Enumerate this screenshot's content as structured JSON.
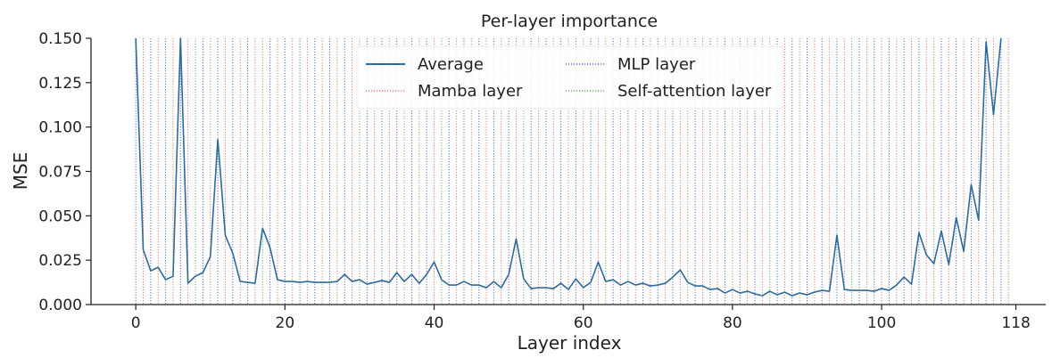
{
  "chart_data": {
    "type": "line",
    "title": "Per-layer importance",
    "xlabel": "Layer index",
    "ylabel": "MSE",
    "xlim": [
      -6,
      122
    ],
    "ylim": [
      0,
      0.15
    ],
    "x_ticks": [
      0,
      20,
      40,
      60,
      80,
      100,
      118
    ],
    "x_tick_labels": [
      "0",
      "20",
      "40",
      "60",
      "80",
      "100",
      "118"
    ],
    "y_ticks": [
      0,
      0.025,
      0.05,
      0.075,
      0.1,
      0.125,
      0.15
    ],
    "y_tick_labels": [
      "0.000",
      "0.025",
      "0.050",
      "0.075",
      "0.100",
      "0.125",
      "0.150"
    ],
    "grid": false,
    "legend_position": "top-center",
    "legend": [
      {
        "label": "Average",
        "style": "solid",
        "color": "#2e6b9a"
      },
      {
        "label": "MLP layer",
        "style": "dotted",
        "color": "#4a4ac8"
      },
      {
        "label": "Mamba layer",
        "style": "dotted",
        "color": "#e06060"
      },
      {
        "label": "Self-attention layer",
        "style": "dotted",
        "color": "#4aa04a"
      }
    ],
    "series": [
      {
        "name": "Average",
        "color": "#2e6b9a",
        "x": [
          0,
          1,
          2,
          3,
          4,
          5,
          6,
          7,
          8,
          9,
          10,
          11,
          12,
          13,
          14,
          15,
          16,
          17,
          18,
          19,
          20,
          21,
          22,
          23,
          24,
          25,
          26,
          27,
          28,
          29,
          30,
          31,
          32,
          33,
          34,
          35,
          36,
          37,
          38,
          39,
          40,
          41,
          42,
          43,
          44,
          45,
          46,
          47,
          48,
          49,
          50,
          51,
          52,
          53,
          54,
          55,
          56,
          57,
          58,
          59,
          60,
          61,
          62,
          63,
          64,
          65,
          66,
          67,
          68,
          69,
          70,
          71,
          72,
          73,
          74,
          75,
          76,
          77,
          78,
          79,
          80,
          81,
          82,
          83,
          84,
          85,
          86,
          87,
          88,
          89,
          90,
          91,
          92,
          93,
          94,
          95,
          96,
          97,
          98,
          99,
          100,
          101,
          102,
          103,
          104,
          105,
          106,
          107,
          108,
          109,
          110,
          111,
          112,
          113,
          114,
          115,
          116
        ],
        "values": [
          0.15,
          0.031,
          0.019,
          0.021,
          0.014,
          0.016,
          0.15,
          0.012,
          0.016,
          0.018,
          0.027,
          0.093,
          0.039,
          0.029,
          0.013,
          0.0125,
          0.012,
          0.043,
          0.032,
          0.014,
          0.013,
          0.013,
          0.0125,
          0.013,
          0.0125,
          0.0125,
          0.0125,
          0.013,
          0.017,
          0.013,
          0.014,
          0.0115,
          0.0125,
          0.0135,
          0.0125,
          0.018,
          0.013,
          0.017,
          0.012,
          0.017,
          0.024,
          0.014,
          0.011,
          0.011,
          0.013,
          0.011,
          0.011,
          0.0095,
          0.013,
          0.0095,
          0.017,
          0.037,
          0.0145,
          0.009,
          0.0095,
          0.0095,
          0.009,
          0.012,
          0.0085,
          0.0145,
          0.0095,
          0.0125,
          0.024,
          0.013,
          0.014,
          0.011,
          0.013,
          0.011,
          0.012,
          0.0105,
          0.011,
          0.012,
          0.0155,
          0.0195,
          0.0125,
          0.0105,
          0.0105,
          0.0085,
          0.009,
          0.0065,
          0.0085,
          0.0065,
          0.0075,
          0.006,
          0.005,
          0.0075,
          0.0055,
          0.007,
          0.005,
          0.0065,
          0.0055,
          0.007,
          0.008,
          0.0075,
          0.039,
          0.0085,
          0.008,
          0.008,
          0.008,
          0.0075,
          0.009,
          0.008,
          0.011,
          0.0155,
          0.0115,
          0.0405,
          0.028,
          0.023,
          0.0415,
          0.0225,
          0.049,
          0.03,
          0.0675,
          0.0475,
          0.148,
          0.107,
          0.15
        ]
      }
    ],
    "layer_types": [
      "mlp",
      "mamba",
      "mlp",
      "mamba",
      "mlp",
      "mamba",
      "mlp",
      "mamba",
      "attn",
      "mlp",
      "mamba",
      "mlp",
      "mamba",
      "mlp",
      "mamba",
      "mlp",
      "mamba",
      "attn",
      "mlp",
      "mamba",
      "mlp",
      "mamba",
      "mlp",
      "mamba",
      "mlp",
      "mamba",
      "mlp",
      "mamba",
      "mlp",
      "mamba",
      "attn",
      "mlp",
      "mamba",
      "mlp",
      "mamba",
      "mlp",
      "mamba",
      "mlp",
      "mamba",
      "mlp",
      "mamba",
      "attn",
      "mlp",
      "mamba",
      "mlp",
      "mamba",
      "mlp",
      "mamba",
      "mlp",
      "mamba",
      "mlp",
      "mamba",
      "attn",
      "mlp",
      "mamba",
      "mlp",
      "mamba",
      "mlp",
      "mamba",
      "mlp",
      "mamba",
      "mlp",
      "mamba",
      "attn",
      "mlp",
      "mamba",
      "mlp",
      "mamba",
      "mlp",
      "mamba",
      "mlp",
      "mamba",
      "mlp",
      "mamba",
      "attn",
      "mlp",
      "mamba",
      "mlp",
      "mamba",
      "mlp",
      "mamba",
      "mlp",
      "mamba",
      "mlp",
      "mamba",
      "attn",
      "mlp",
      "mamba",
      "mlp",
      "mamba",
      "mlp",
      "mamba",
      "mlp",
      "mamba",
      "mlp",
      "mamba",
      "attn",
      "mlp",
      "mamba",
      "mlp",
      "mamba",
      "mlp",
      "mamba",
      "mlp",
      "mamba",
      "mlp",
      "mamba",
      "attn",
      "mlp",
      "mamba",
      "mlp",
      "mamba",
      "mlp",
      "mamba",
      "mlp",
      "mamba",
      "mlp",
      "mamba"
    ],
    "layer_type_colors": {
      "mlp": "#4a4ac8",
      "mamba": "#e06060",
      "attn": "#4aa04a"
    }
  }
}
